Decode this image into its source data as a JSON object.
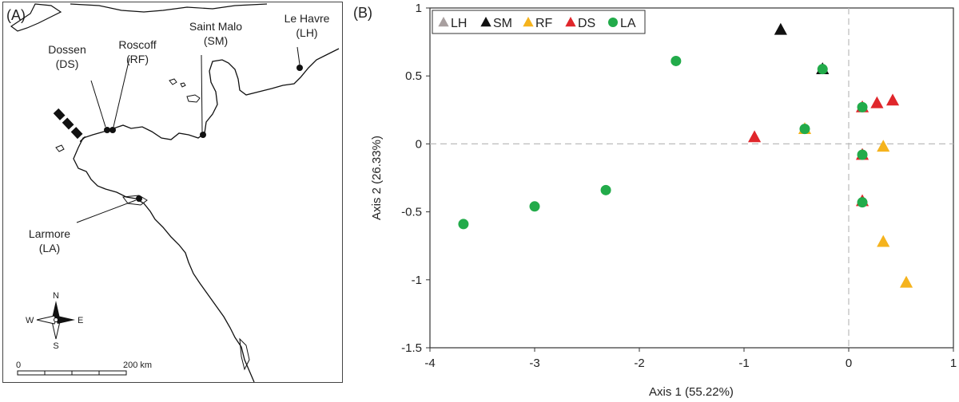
{
  "map": {
    "panel_label": "(A)",
    "sites": [
      {
        "name": "Dossen",
        "code": "(DS)"
      },
      {
        "name": "Roscoff",
        "code": "(RF)"
      },
      {
        "name": "Saint Malo",
        "code": "(SM)"
      },
      {
        "name": "Le Havre",
        "code": "(LH)"
      },
      {
        "name": "Larmore",
        "code": "(LA)"
      }
    ],
    "compass": {
      "n": "N",
      "s": "S",
      "e": "E",
      "w": "W"
    },
    "scale": {
      "start": "0",
      "end": "200 km"
    }
  },
  "chart_data": {
    "type": "scatter",
    "panel_label": "(B)",
    "xlabel": "Axis 1 (55.22%)",
    "ylabel": "Axis 2 (26.33%)",
    "xlim": [
      -4,
      1
    ],
    "ylim": [
      -1.5,
      1
    ],
    "xticks": [
      "-4",
      "-3",
      "-2",
      "-1",
      "0",
      "1"
    ],
    "yticks": [
      "-1.5",
      "-1",
      "-0.5",
      "0",
      "0.5",
      "1"
    ],
    "legend_position": "top-left",
    "series": [
      {
        "name": "LH",
        "marker": "triangle",
        "color": "#a89f9f",
        "points": [
          [
            -0.25,
            0.55
          ]
        ]
      },
      {
        "name": "SM",
        "marker": "triangle",
        "color": "#111111",
        "points": [
          [
            -0.65,
            0.84
          ],
          [
            -0.25,
            0.55
          ]
        ]
      },
      {
        "name": "RF",
        "marker": "triangle",
        "color": "#f5b31d",
        "points": [
          [
            -0.42,
            0.11
          ],
          [
            0.33,
            -0.02
          ],
          [
            0.33,
            -0.72
          ],
          [
            0.55,
            -1.02
          ]
        ]
      },
      {
        "name": "DS",
        "marker": "triangle",
        "color": "#e0262b",
        "points": [
          [
            -0.9,
            0.05
          ],
          [
            0.13,
            0.27
          ],
          [
            0.27,
            0.3
          ],
          [
            0.42,
            0.32
          ],
          [
            0.13,
            -0.08
          ],
          [
            0.13,
            -0.42
          ]
        ]
      },
      {
        "name": "LA",
        "marker": "circle",
        "color": "#22ab4a",
        "points": [
          [
            -3.68,
            -0.59
          ],
          [
            -3.0,
            -0.46
          ],
          [
            -2.32,
            -0.34
          ],
          [
            -1.65,
            0.61
          ],
          [
            -0.25,
            0.55
          ],
          [
            -0.42,
            0.11
          ],
          [
            0.13,
            0.27
          ],
          [
            0.13,
            -0.08
          ],
          [
            0.13,
            -0.43
          ]
        ]
      }
    ]
  }
}
